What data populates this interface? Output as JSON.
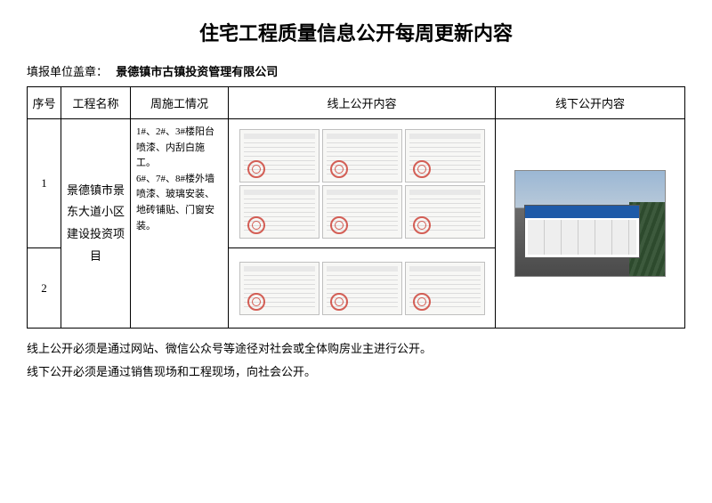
{
  "title": "住宅工程质量信息公开每周更新内容",
  "reporter": {
    "label": "填报单位盖章：",
    "value": "景德镇市古镇投资管理有限公司"
  },
  "table": {
    "headers": {
      "seq": "序号",
      "project_name": "工程名称",
      "week_status": "周施工情况",
      "online": "线上公开内容",
      "offline": "线下公开内容"
    },
    "rows": [
      {
        "seq": "1",
        "project_name": "景德镇市景东大道小区建设投资项目",
        "week_status_line1": "1#、2#、3#楼阳台喷漆、内刮白施工。",
        "week_status_line2": "6#、7#、8#楼外墙喷漆、玻璃安装、地砖铺贴、门窗安装。",
        "online_forms_top_count": 3,
        "online_forms_mid_count": 3,
        "offline_banner_text": "景德镇市景东大道小区及其附属项目工程质量验收信息"
      },
      {
        "seq": "2",
        "online_forms_count": 3
      }
    ]
  },
  "notes": {
    "line1": "线上公开必须是通过网站、微信公众号等途径对社会或全体购房业主进行公开。",
    "line2": "线下公开必须是通过销售现场和工程现场，向社会公开。"
  },
  "colors": {
    "text": "#000000",
    "border": "#000000",
    "stamp": "#cc3a2f",
    "banner_header": "#1e5aa8",
    "sky": "#9bb7d4"
  }
}
